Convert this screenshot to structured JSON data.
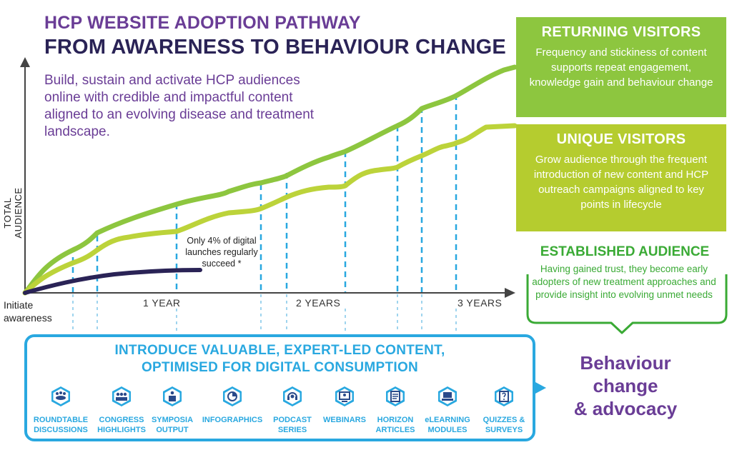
{
  "title_line1": "HCP WEBSITE ADOPTION PATHWAY",
  "title_line2": "FROM AWARENESS TO BEHAVIOUR CHANGE",
  "subtitle": "Build, sustain and activate HCP audiences online with credible and impactful content aligned to an evolving disease and treatment landscape.",
  "axis": {
    "y_label": "TOTAL AUDIENCE",
    "origin_label": "Initiate awareness",
    "x_ticks": [
      "1 YEAR",
      "2 YEARS",
      "3 YEARS"
    ]
  },
  "note": "Only 4% of digital launches regularly succeed *",
  "returning": {
    "title": "RETURNING VISITORS",
    "text": "Frequency and stickiness of content supports repeat engagement, knowledge gain and behaviour change"
  },
  "unique": {
    "title": "UNIQUE VISITORS",
    "text": "Grow audience through the frequent introduction of new content and HCP outreach campaigns aligned to key points in lifecycle"
  },
  "established": {
    "title": "ESTABLISHED AUDIENCE",
    "text": "Having gained trust, they become early adopters of new treatment approaches and provide insight into evolving unmet needs"
  },
  "content": {
    "title_line1": "INTRODUCE VALUABLE, EXPERT-LED CONTENT,",
    "title_line2": "OPTIMISED FOR DIGITAL CONSUMPTION",
    "items": [
      {
        "label1": "ROUNDTABLE",
        "label2": "DISCUSSIONS",
        "icon": "roundtable-icon"
      },
      {
        "label1": "CONGRESS",
        "label2": "HIGHLIGHTS",
        "icon": "congress-icon"
      },
      {
        "label1": "SYMPOSIA",
        "label2": "OUTPUT",
        "icon": "podium-icon"
      },
      {
        "label1": "INFOGRAPHICS",
        "label2": "",
        "icon": "infographic-icon"
      },
      {
        "label1": "PODCAST",
        "label2": "SERIES",
        "icon": "headset-icon"
      },
      {
        "label1": "WEBINARS",
        "label2": "",
        "icon": "webinar-icon"
      },
      {
        "label1": "HORIZON",
        "label2": "ARTICLES",
        "icon": "article-icon"
      },
      {
        "label1": "eLEARNING",
        "label2": "MODULES",
        "icon": "laptop-icon"
      },
      {
        "label1": "QUIZZES &",
        "label2": "SURVEYS",
        "icon": "quiz-icon"
      }
    ]
  },
  "behaviour": {
    "line1": "Behaviour",
    "line2": "change",
    "line3": "& advocacy"
  },
  "colors": {
    "purple": "#6a3d96",
    "navy": "#2a2356",
    "returning_green": "#8dc63f",
    "unique_green": "#b5cc2f",
    "established_green": "#3aaa35",
    "blue": "#29a8e0"
  }
}
